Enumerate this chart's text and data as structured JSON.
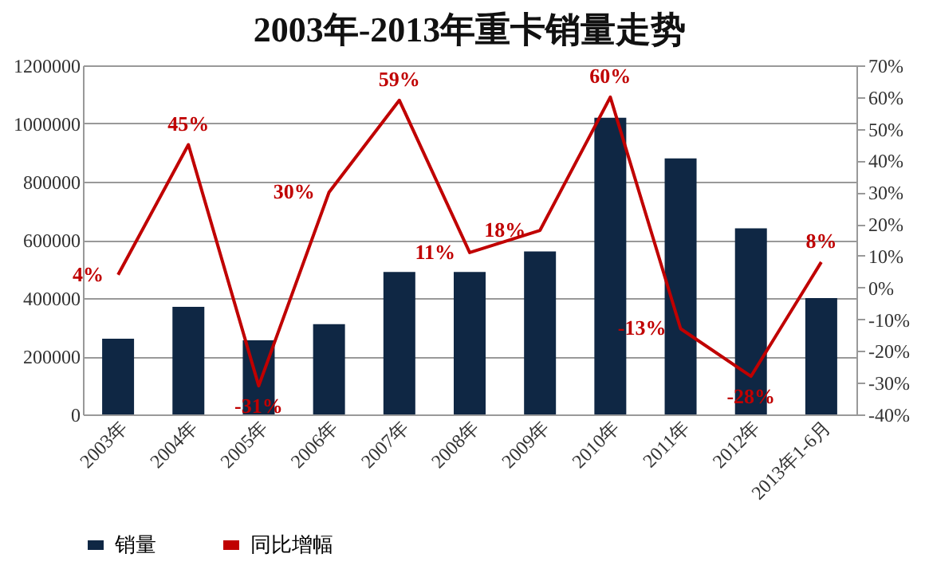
{
  "chart_data": {
    "type": "bar",
    "title": "2003年-2013年重卡销量走势",
    "categories": [
      "2003年",
      "2004年",
      "2005年",
      "2006年",
      "2007年",
      "2008年",
      "2009年",
      "2010年",
      "2011年",
      "2012年",
      "2013年1-6月"
    ],
    "series": [
      {
        "name": "销量",
        "color": "#0f2744",
        "values": [
          260000,
          370000,
          255000,
          310000,
          490000,
          490000,
          560000,
          1020000,
          880000,
          640000,
          400000
        ]
      },
      {
        "name": "同比增幅",
        "type": "line",
        "axis": "y2",
        "color": "#c00000",
        "values": [
          4,
          45,
          -31,
          30,
          59,
          11,
          18,
          60,
          -13,
          -28,
          8
        ],
        "value_labels": [
          "4%",
          "45%",
          "-31%",
          "30%",
          "59%",
          "11%",
          "18%",
          "60%",
          "-13%",
          "-28%",
          "8%"
        ]
      }
    ],
    "ylim": [
      0,
      1200000
    ],
    "yticks": [
      0,
      200000,
      400000,
      600000,
      800000,
      1000000,
      1200000
    ],
    "y2lim": [
      -40,
      70
    ],
    "y2ticks": [
      {
        "value": -40,
        "label": "-40%"
      },
      {
        "value": -30,
        "label": "-30%"
      },
      {
        "value": -20,
        "label": "-20%"
      },
      {
        "value": -10,
        "label": "-10%"
      },
      {
        "value": 0,
        "label": "0%"
      },
      {
        "value": 10,
        "label": "10%"
      },
      {
        "value": 20,
        "label": "20%"
      },
      {
        "value": 30,
        "label": "30%"
      },
      {
        "value": 40,
        "label": "40%"
      },
      {
        "value": 50,
        "label": "50%"
      },
      {
        "value": 60,
        "label": "60%"
      },
      {
        "value": 70,
        "label": "70%"
      }
    ],
    "grid": "y",
    "legend": "bottom",
    "marker": "none",
    "line_style": "solid"
  }
}
